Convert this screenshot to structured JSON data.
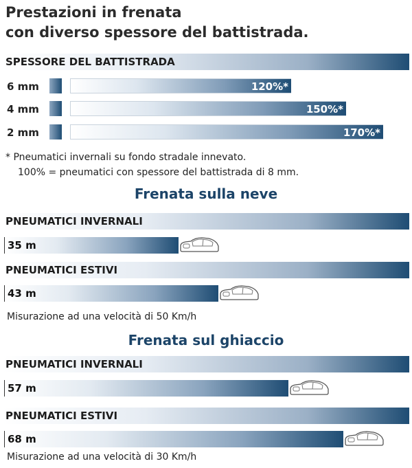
{
  "title": {
    "line1": "Prestazioni in frenata",
    "line2": "con diverso spessore del battistrada."
  },
  "colors": {
    "brand_dark": "#1f4d74",
    "brand_light": "#e6ecf3",
    "heading": "#1c4468"
  },
  "chart_data": [
    {
      "type": "bar",
      "title": "SPESSORE DEL BATTISTRADA",
      "categories": [
        "6 mm",
        "4 mm",
        "2 mm"
      ],
      "values": [
        120,
        150,
        170
      ],
      "value_labels": [
        "120%*",
        "150%*",
        "170%*"
      ],
      "notes": [
        "* Pneumatici invernali su fondo stradale innevato.",
        "100% = pneumatici con spessore del battistrada di 8 mm."
      ]
    },
    {
      "type": "bar",
      "title": "Frenata sulla neve",
      "categories": [
        "PNEUMATICI INVERNALI",
        "PNEUMATICI ESTIVI"
      ],
      "values": [
        35,
        43
      ],
      "value_labels": [
        "35 m",
        "43 m"
      ],
      "note": "Misurazione ad una velocità di 50 Km/h",
      "icon": "car-icon"
    },
    {
      "type": "bar",
      "title": "Frenata sul ghiaccio",
      "categories": [
        "PNEUMATICI INVERNALI",
        "PNEUMATICI ESTIVI"
      ],
      "values": [
        57,
        68
      ],
      "value_labels": [
        "57 m",
        "68 m"
      ],
      "note": "Misurazione ad una velocità di 30 Km/h",
      "icon": "car-icon"
    }
  ]
}
